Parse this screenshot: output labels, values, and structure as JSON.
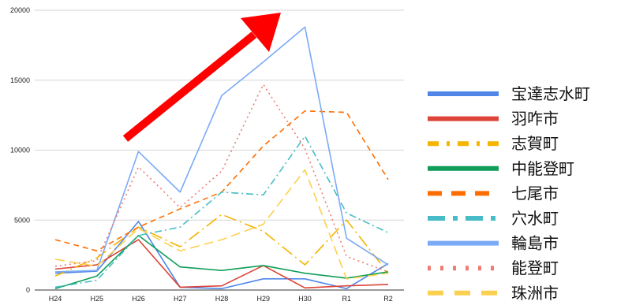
{
  "chart_data": {
    "type": "line",
    "categories": [
      "H24",
      "H25",
      "H26",
      "H27",
      "H28",
      "H29",
      "H30",
      "R1",
      "R2"
    ],
    "ylim": [
      0,
      20000
    ],
    "yticks": [
      0,
      5000,
      10000,
      15000,
      20000
    ],
    "grid": true,
    "legend_position": "right",
    "series": [
      {
        "name": "宝達志水町",
        "color": "#4f86e8",
        "values": [
          1200,
          1350,
          4900,
          200,
          100,
          800,
          800,
          100,
          1900
        ]
      },
      {
        "name": "羽咋市",
        "color": "#db4437",
        "values": [
          1500,
          1800,
          3600,
          200,
          300,
          1750,
          150,
          300,
          400
        ]
      },
      {
        "name": "志賀町",
        "color": "#f4b400",
        "values": [
          1000,
          2300,
          4500,
          3100,
          5400,
          4200,
          1800,
          5000,
          1200
        ]
      },
      {
        "name": "中能登町",
        "color": "#0f9d58",
        "values": [
          100,
          1000,
          3900,
          1650,
          1400,
          1750,
          1200,
          850,
          1300
        ]
      },
      {
        "name": "七尾市",
        "color": "#ff6d01",
        "values": [
          3600,
          2800,
          4500,
          5800,
          7000,
          10300,
          12800,
          12700,
          7900
        ]
      },
      {
        "name": "穴水町",
        "color": "#46bdc6",
        "values": [
          200,
          700,
          3900,
          4500,
          7000,
          6800,
          11000,
          5500,
          4100
        ]
      },
      {
        "name": "輪島市",
        "color": "#7baaf7",
        "values": [
          1300,
          1400,
          9900,
          7000,
          13900,
          16300,
          18800,
          3700,
          1800
        ]
      },
      {
        "name": "能登町",
        "color": "#f07b72",
        "values": [
          1700,
          2100,
          8800,
          5900,
          8500,
          14700,
          10100,
          2400,
          1300
        ]
      },
      {
        "name": "珠洲市",
        "color": "#fcd04f",
        "values": [
          2200,
          1700,
          4400,
          2800,
          3600,
          4700,
          8600,
          800,
          1200
        ]
      }
    ],
    "annotation": {
      "type": "arrow",
      "color": "#ff0000"
    }
  }
}
